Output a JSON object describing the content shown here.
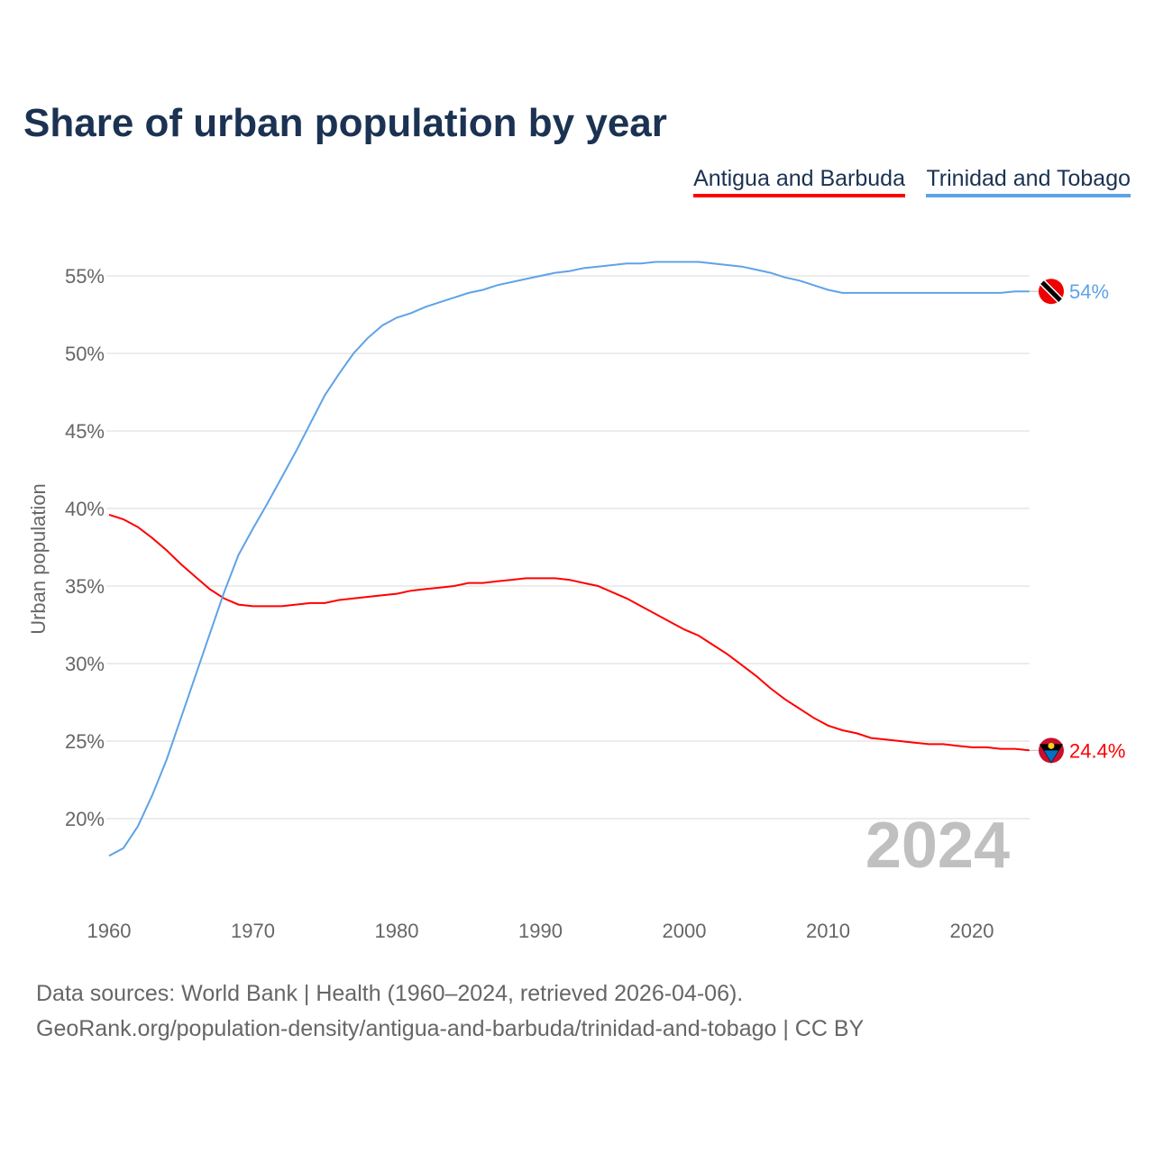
{
  "chart_data": {
    "type": "line",
    "title": "Share of urban population by year",
    "ylabel": "Urban population",
    "xlabel": "",
    "ylim": [
      15,
      57
    ],
    "xlim": [
      1960,
      2024
    ],
    "yticks": [
      "20%",
      "25%",
      "30%",
      "35%",
      "40%",
      "45%",
      "50%",
      "55%"
    ],
    "ytick_values": [
      20,
      25,
      30,
      35,
      40,
      45,
      50,
      55
    ],
    "xticks": [
      "1960",
      "1970",
      "1980",
      "1990",
      "2000",
      "2010",
      "2020"
    ],
    "xtick_values": [
      1960,
      1970,
      1980,
      1990,
      2000,
      2010,
      2020
    ],
    "grid": true,
    "legend_placement": "top-right",
    "year_watermark": "2024",
    "x": [
      1960,
      1961,
      1962,
      1963,
      1964,
      1965,
      1966,
      1967,
      1968,
      1969,
      1970,
      1971,
      1972,
      1973,
      1974,
      1975,
      1976,
      1977,
      1978,
      1979,
      1980,
      1981,
      1982,
      1983,
      1984,
      1985,
      1986,
      1987,
      1988,
      1989,
      1990,
      1991,
      1992,
      1993,
      1994,
      1995,
      1996,
      1997,
      1998,
      1999,
      2000,
      2001,
      2002,
      2003,
      2004,
      2005,
      2006,
      2007,
      2008,
      2009,
      2010,
      2011,
      2012,
      2013,
      2014,
      2015,
      2016,
      2017,
      2018,
      2019,
      2020,
      2021,
      2022,
      2023,
      2024
    ],
    "series": [
      {
        "name": "Antigua and Barbuda",
        "color": "#ff0000",
        "end_label": "24.4%",
        "values": [
          39.6,
          39.3,
          38.8,
          38.1,
          37.3,
          36.4,
          35.6,
          34.8,
          34.2,
          33.8,
          33.7,
          33.7,
          33.7,
          33.8,
          33.9,
          33.9,
          34.1,
          34.2,
          34.3,
          34.4,
          34.5,
          34.7,
          34.8,
          34.9,
          35.0,
          35.2,
          35.2,
          35.3,
          35.4,
          35.5,
          35.5,
          35.5,
          35.4,
          35.2,
          35.0,
          34.6,
          34.2,
          33.7,
          33.2,
          32.7,
          32.2,
          31.8,
          31.2,
          30.6,
          29.9,
          29.2,
          28.4,
          27.7,
          27.1,
          26.5,
          26.0,
          25.7,
          25.5,
          25.2,
          25.1,
          25.0,
          24.9,
          24.8,
          24.8,
          24.7,
          24.6,
          24.6,
          24.5,
          24.5,
          24.4
        ]
      },
      {
        "name": "Trinidad and Tobago",
        "color": "#5ea3e8",
        "end_label": "54%",
        "values": [
          17.6,
          18.1,
          19.5,
          21.5,
          23.8,
          26.5,
          29.2,
          31.9,
          34.6,
          37.0,
          38.7,
          40.3,
          42.0,
          43.7,
          45.5,
          47.3,
          48.7,
          50.0,
          51.0,
          51.8,
          52.3,
          52.6,
          53.0,
          53.3,
          53.6,
          53.9,
          54.1,
          54.4,
          54.6,
          54.8,
          55.0,
          55.2,
          55.3,
          55.5,
          55.6,
          55.7,
          55.8,
          55.8,
          55.9,
          55.9,
          55.9,
          55.9,
          55.8,
          55.7,
          55.6,
          55.4,
          55.2,
          54.9,
          54.7,
          54.4,
          54.1,
          53.9,
          53.9,
          53.9,
          53.9,
          53.9,
          53.9,
          53.9,
          53.9,
          53.9,
          53.9,
          53.9,
          53.9,
          54.0,
          54.0
        ]
      }
    ]
  },
  "footer": {
    "line1": "Data sources: World Bank | Health (1960–2024, retrieved 2026-04-06).",
    "line2": "GeoRank.org/population-density/antigua-and-barbuda/trinidad-and-tobago | CC BY"
  }
}
